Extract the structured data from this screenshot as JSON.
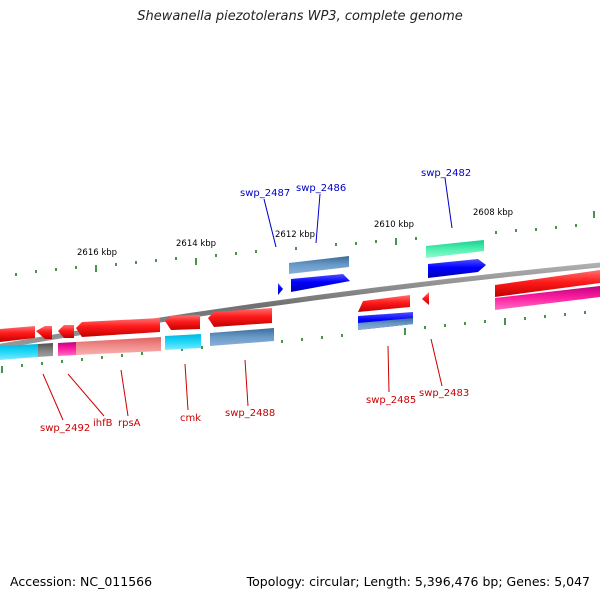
{
  "title": "Shewanella piezotolerans WP3, complete genome",
  "footer": {
    "accession": "Accession: NC_011566",
    "summary": "Topology: circular; Length: 5,396,476 bp; Genes: 5,047"
  },
  "colors": {
    "backbone": "#808080",
    "ticks": "#1a7a1a",
    "forward_label": "#0000cc",
    "reverse_label": "#cc0000"
  },
  "scale_labels": [
    "2616 kbp",
    "2614 kbp",
    "2612 kbp",
    "2610 kbp",
    "2608 kbp"
  ],
  "gene_labels_top": [
    "swp_2487",
    "swp_2486",
    "swp_2482"
  ],
  "gene_labels_bottom": [
    "swp_2492",
    "ihfB",
    "rpsA",
    "cmk",
    "swp_2488",
    "swp_2485",
    "swp_2483"
  ]
}
